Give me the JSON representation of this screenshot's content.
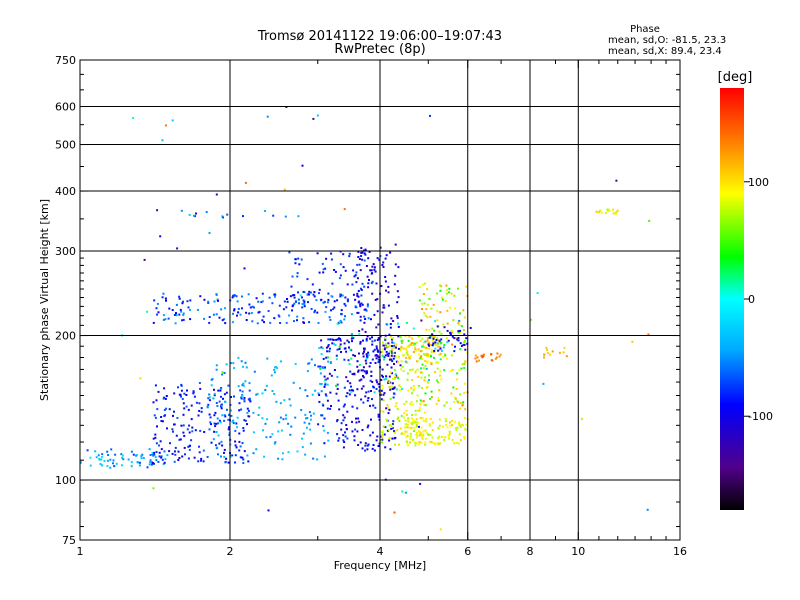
{
  "chart_data": {
    "type": "scatter",
    "title": "Tromsø 20141122 19:06:00–19:07:43",
    "subtitle": "RwPretec (8p)",
    "xlabel": "Frequency [MHz]",
    "ylabel": "Stationary phase Virtual Height [km]",
    "x_scale": "log2",
    "y_scale": "log",
    "xlim": [
      1,
      16
    ],
    "ylim": [
      75,
      750
    ],
    "x_ticks": [
      1,
      2,
      4,
      6,
      8,
      10,
      16
    ],
    "y_ticks": [
      75,
      100,
      200,
      300,
      400,
      500,
      600,
      750
    ],
    "x_gridlines": [
      2,
      4,
      6,
      8,
      10
    ],
    "y_gridlines": [
      100,
      200,
      300,
      400,
      500,
      600
    ],
    "grid": true,
    "phase_stats": {
      "heading": "Phase",
      "line_o": "mean, sd,O: -81.5, 23.3",
      "line_x": "mean, sd,X:  89.4, 23.4"
    },
    "colorbar": {
      "label": "[deg]",
      "range": [
        -180,
        180
      ],
      "ticks": [
        100,
        0,
        -100
      ]
    },
    "clusters": [
      {
        "f": [
          1.0,
          1.5
        ],
        "h": [
          106,
          116
        ],
        "phase": [
          -80,
          -10
        ],
        "n": 70
      },
      {
        "f": [
          1.4,
          2.2
        ],
        "h": [
          108,
          160
        ],
        "phase": [
          -110,
          -60
        ],
        "n": 220
      },
      {
        "f": [
          1.8,
          3.2
        ],
        "h": [
          110,
          180
        ],
        "phase": [
          -60,
          -20
        ],
        "n": 160
      },
      {
        "f": [
          1.4,
          3.8
        ],
        "h": [
          212,
          245
        ],
        "phase": [
          -100,
          -40
        ],
        "n": 190
      },
      {
        "f": [
          2.6,
          4.1
        ],
        "h": [
          230,
          300
        ],
        "phase": [
          -110,
          -60
        ],
        "n": 90
      },
      {
        "f": [
          3.0,
          4.3
        ],
        "h": [
          115,
          200
        ],
        "phase": [
          -120,
          -70
        ],
        "n": 260
      },
      {
        "f": [
          3.6,
          4.4
        ],
        "h": [
          150,
          310
        ],
        "phase": [
          -130,
          -90
        ],
        "n": 150
      },
      {
        "f": [
          4.0,
          5.0
        ],
        "h": [
          118,
          200
        ],
        "phase": [
          60,
          110
        ],
        "n": 170
      },
      {
        "f": [
          4.3,
          5.3
        ],
        "h": [
          175,
          200
        ],
        "phase": [
          70,
          120
        ],
        "n": 80
      },
      {
        "f": [
          4.5,
          6.0
        ],
        "h": [
          118,
          135
        ],
        "phase": [
          70,
          110
        ],
        "n": 110
      },
      {
        "f": [
          4.8,
          6.0
        ],
        "h": [
          140,
          260
        ],
        "phase": [
          30,
          130
        ],
        "n": 150
      },
      {
        "f": [
          5.0,
          6.1
        ],
        "h": [
          185,
          210
        ],
        "phase": [
          -130,
          -80
        ],
        "n": 40
      },
      {
        "f": [
          3.0,
          5.5
        ],
        "h": [
          150,
          220
        ],
        "phase": [
          -40,
          40
        ],
        "n": 60
      },
      {
        "f": [
          6.2,
          7.0
        ],
        "h": [
          176,
          184
        ],
        "phase": [
          120,
          150
        ],
        "n": 20
      },
      {
        "f": [
          8.5,
          9.5
        ],
        "h": [
          180,
          190
        ],
        "phase": [
          100,
          130
        ],
        "n": 12
      },
      {
        "f": [
          10.5,
          12.0
        ],
        "h": [
          358,
          366
        ],
        "phase": [
          70,
          110
        ],
        "n": 16
      },
      {
        "f": [
          1.6,
          2.8
        ],
        "h": [
          350,
          365
        ],
        "phase": [
          -110,
          -20
        ],
        "n": 14
      },
      {
        "f": [
          1.2,
          14.5
        ],
        "h": [
          78,
          620
        ],
        "phase": [
          -150,
          150
        ],
        "n": 50
      }
    ]
  }
}
